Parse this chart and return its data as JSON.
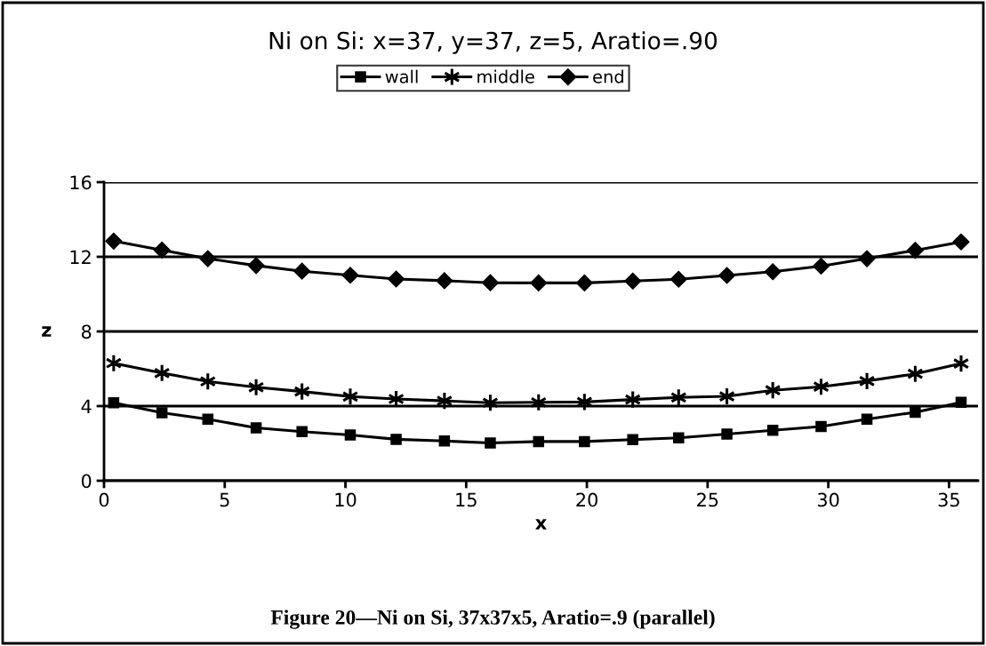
{
  "chart_data": {
    "type": "line",
    "title": "Ni on Si: x=37, y=37, z=5, Aratio=.90",
    "xlabel": "x",
    "ylabel": "z",
    "annotations": [
      "Figure 20—Ni on Si, 37x37x5, Aratio=.9 (parallel)"
    ],
    "x": [
      0.4,
      2.4,
      4.3,
      6.3,
      8.2,
      10.2,
      12.1,
      14.1,
      16.0,
      18.0,
      19.9,
      21.9,
      23.8,
      25.8,
      27.7,
      29.7,
      31.6,
      33.6,
      35.5
    ],
    "series": [
      {
        "name": "wall",
        "color": "#000000",
        "marker": "square",
        "values": [
          4.18,
          3.64,
          3.3,
          2.83,
          2.63,
          2.45,
          2.22,
          2.13,
          2.02,
          2.1,
          2.1,
          2.2,
          2.3,
          2.5,
          2.7,
          2.9,
          3.3,
          3.67,
          4.2
        ]
      },
      {
        "name": "middle",
        "color": "#000000",
        "marker": "cross",
        "values": [
          6.3,
          5.77,
          5.32,
          5.01,
          4.78,
          4.51,
          4.38,
          4.28,
          4.18,
          4.2,
          4.22,
          4.35,
          4.46,
          4.52,
          4.85,
          5.04,
          5.34,
          5.73,
          6.28
        ]
      },
      {
        "name": "end",
        "color": "#000000",
        "marker": "diamond",
        "values": [
          12.84,
          12.36,
          11.9,
          11.53,
          11.23,
          11.01,
          10.81,
          10.72,
          10.61,
          10.6,
          10.6,
          10.7,
          10.8,
          11.0,
          11.2,
          11.5,
          11.9,
          12.35,
          12.8
        ]
      }
    ],
    "xlim": [
      0,
      36.2
    ],
    "xticks": [
      0,
      5,
      10,
      15,
      20,
      25,
      30,
      35
    ],
    "ylim": [
      0,
      16
    ],
    "yticks": [
      0,
      4,
      8,
      12,
      16
    ],
    "grid": "y",
    "legend": "top",
    "line_style": "solid"
  }
}
